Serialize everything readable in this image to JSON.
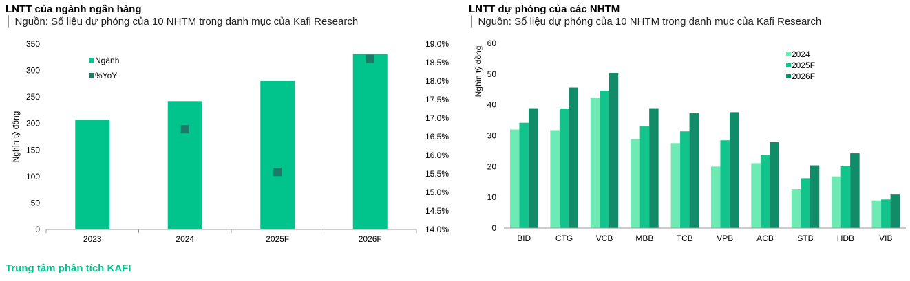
{
  "left_chart": {
    "title": "LNTT của ngành ngân hàng",
    "subtitle": "│ Nguồn: Số liệu dự phóng của 10 NHTM trong danh mục của Kafi Research"
  },
  "right_chart": {
    "title": "LNTT dự phóng của các NHTM",
    "subtitle": "│ Nguồn: Số liệu dự phóng của 10 NHTM trong danh mục của Kafi Research"
  },
  "footer": "Trung tâm phân tích KAFI",
  "colors": {
    "nganh": "#00C48C",
    "yoy": "#1B7A68",
    "y2024": "#6EEBB4",
    "y2025": "#12C48C",
    "y2026": "#118B68",
    "footer": "#00C48C"
  },
  "chart_data": [
    {
      "type": "bar",
      "title": "LNTT của ngành ngân hàng",
      "ylabel": "Nghìn tỷ đồng",
      "categories": [
        "2023",
        "2024",
        "2025F",
        "2026F"
      ],
      "ylim": [
        0,
        350
      ],
      "yticks": [
        0,
        50,
        100,
        150,
        200,
        250,
        300,
        350
      ],
      "y2lim": [
        14.0,
        19.0
      ],
      "y2ticks": [
        "14.0%",
        "14.5%",
        "15.0%",
        "15.5%",
        "16.0%",
        "16.5%",
        "17.0%",
        "17.5%",
        "18.0%",
        "18.5%",
        "19.0%"
      ],
      "series": [
        {
          "name": "Ngành",
          "kind": "bar",
          "axis": "left",
          "values": [
            207,
            242,
            280,
            331
          ]
        },
        {
          "name": "%YoY",
          "kind": "marker",
          "axis": "right",
          "values": [
            null,
            16.7,
            15.55,
            18.6
          ]
        }
      ],
      "legend": [
        "Ngành",
        "%YoY"
      ],
      "legend_position": "top-left"
    },
    {
      "type": "bar",
      "title": "LNTT dự phóng của các NHTM",
      "ylabel": "Nghìn tỷ đồng",
      "categories": [
        "BID",
        "CTG",
        "VCB",
        "MBB",
        "TCB",
        "VPB",
        "ACB",
        "STB",
        "HDB",
        "VIB"
      ],
      "ylim": [
        0,
        60
      ],
      "yticks": [
        0,
        10,
        20,
        30,
        40,
        50,
        60
      ],
      "series": [
        {
          "name": "2024",
          "values": [
            32.0,
            31.8,
            42.3,
            28.9,
            27.6,
            20.0,
            21.1,
            12.7,
            16.8,
            9.0
          ]
        },
        {
          "name": "2025F",
          "values": [
            34.2,
            38.8,
            44.6,
            33.0,
            31.4,
            28.5,
            23.8,
            16.2,
            20.1,
            9.3
          ]
        },
        {
          "name": "2026F",
          "values": [
            38.9,
            45.6,
            50.4,
            38.9,
            37.3,
            37.6,
            27.9,
            20.4,
            24.3,
            10.9
          ]
        }
      ],
      "legend": [
        "2024",
        "2025F",
        "2026F"
      ],
      "legend_position": "top-right"
    }
  ]
}
